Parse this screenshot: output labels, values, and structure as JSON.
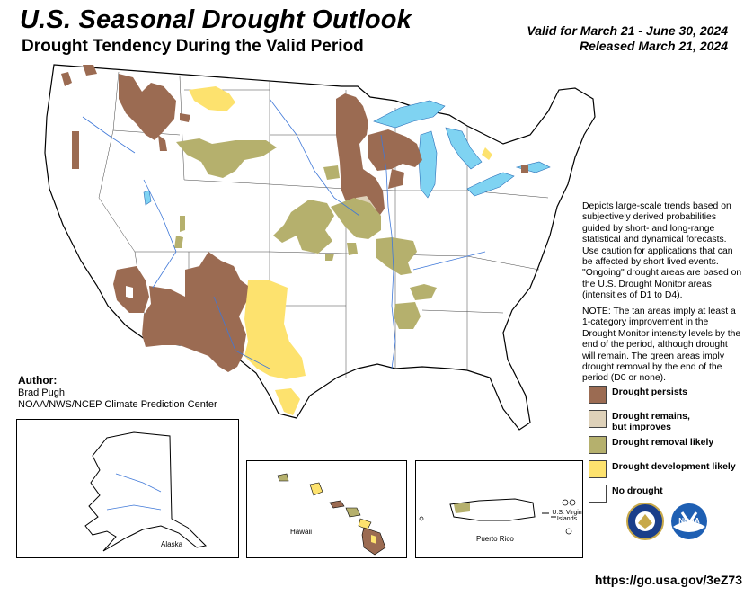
{
  "header": {
    "title": "U.S. Seasonal Drought Outlook",
    "subtitle": "Drought Tendency During the Valid Period",
    "valid_line": "Valid for March 21 - June 30, 2024",
    "released_line": "Released March 21, 2024"
  },
  "description": "Depicts large-scale trends based on subjectively derived probabilities guided by short- and long-range statistical and dynamical forecasts. Use caution for applications that can be affected by short lived events. \"Ongoing\" drought areas are based on the U.S. Drought Monitor areas (intensities of D1 to D4).",
  "note": "NOTE: The tan areas imply at least a 1-category improvement in the Drought Monitor intensity levels by the end of the period, although drought will remain. The green areas imply drought removal by the end of the period (D0 or none).",
  "author": {
    "heading": "Author:",
    "name": "Brad Pugh",
    "org": "NOAA/NWS/NCEP Climate Prediction Center"
  },
  "legend": [
    {
      "label": "Drought persists",
      "color": "#9b6b52"
    },
    {
      "label": "Drought remains, but improves",
      "color": "#ded1b9"
    },
    {
      "label": "Drought removal likely",
      "color": "#b5b06d"
    },
    {
      "label": "Drought development likely",
      "color": "#fde26e"
    },
    {
      "label": "No drought",
      "color": "#ffffff"
    }
  ],
  "insets": {
    "alaska": "Alaska",
    "hawaii": "Hawaii",
    "puerto_rico": "Puerto Rico",
    "virgin_islands": "U.S. Virgin Islands"
  },
  "url": "https://go.usa.gov/3eZ73",
  "colors": {
    "persists": "#9b6b52",
    "improves": "#ded1b9",
    "removal": "#b5b06d",
    "development": "#fde26e",
    "water": "#7fd3f2",
    "river": "#3f78d8"
  }
}
